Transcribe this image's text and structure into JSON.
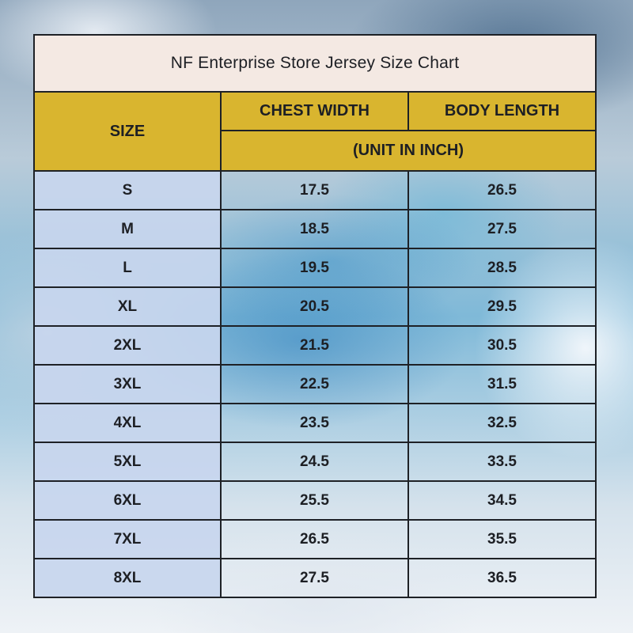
{
  "title": "NF Enterprise Store Jersey Size Chart",
  "headers": {
    "size": "SIZE",
    "chest_width": "CHEST WIDTH",
    "body_length": "BODY LENGTH",
    "unit": "(UNIT IN INCH)"
  },
  "rows": [
    {
      "size": "S",
      "chest": "17.5",
      "length": "26.5"
    },
    {
      "size": "M",
      "chest": "18.5",
      "length": "27.5"
    },
    {
      "size": "L",
      "chest": "19.5",
      "length": "28.5"
    },
    {
      "size": "XL",
      "chest": "20.5",
      "length": "29.5"
    },
    {
      "size": "2XL",
      "chest": "21.5",
      "length": "30.5"
    },
    {
      "size": "3XL",
      "chest": "22.5",
      "length": "31.5"
    },
    {
      "size": "4XL",
      "chest": "23.5",
      "length": "32.5"
    },
    {
      "size": "5XL",
      "chest": "24.5",
      "length": "33.5"
    },
    {
      "size": "6XL",
      "chest": "25.5",
      "length": "34.5"
    },
    {
      "size": "7XL",
      "chest": "26.5",
      "length": "35.5"
    },
    {
      "size": "8XL",
      "chest": "27.5",
      "length": "36.5"
    }
  ],
  "colors": {
    "title_background": "#f4e9e3",
    "header_background": "#d9b52f",
    "size_column_background": "#c8d6ee",
    "border": "#1e2126"
  }
}
